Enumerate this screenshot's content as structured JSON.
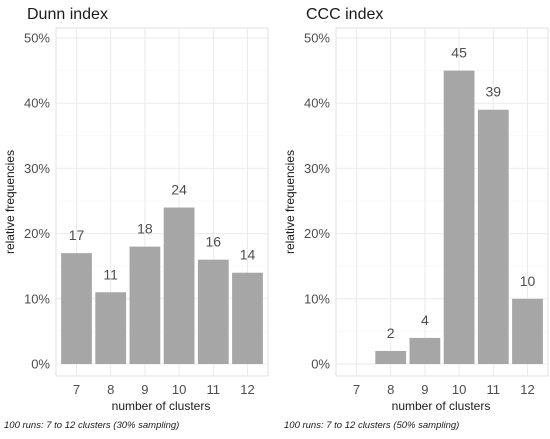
{
  "chart_data": [
    {
      "type": "bar",
      "title": "Dunn index",
      "xlabel": "number of clusters",
      "ylabel": "relative frequencies",
      "categories": [
        "7",
        "8",
        "9",
        "10",
        "11",
        "12"
      ],
      "values": [
        17,
        11,
        18,
        24,
        16,
        14
      ],
      "value_labels": [
        "17",
        "11",
        "18",
        "24",
        "16",
        "14"
      ],
      "ylim": [
        0,
        50
      ],
      "yticks": [
        "0%",
        "10%",
        "20%",
        "30%",
        "40%",
        "50%"
      ],
      "grid": true,
      "caption": "100 runs: 7 to 12 clusters (30% sampling)"
    },
    {
      "type": "bar",
      "title": "CCC index",
      "xlabel": "number of clusters",
      "ylabel": "relative frequencies",
      "categories": [
        "7",
        "8",
        "9",
        "10",
        "11",
        "12"
      ],
      "values": [
        0,
        2,
        4,
        45,
        39,
        10
      ],
      "value_labels": [
        "",
        "2",
        "4",
        "45",
        "39",
        "10"
      ],
      "ylim": [
        0,
        50
      ],
      "yticks": [
        "0%",
        "10%",
        "20%",
        "30%",
        "40%",
        "50%"
      ],
      "grid": true,
      "caption": "100 runs: 7 to 12 clusters (50% sampling)"
    }
  ],
  "colors": {
    "bar": "#a6a6a6",
    "grid": "#ebebeb",
    "panel_border": "#d9d9d9"
  }
}
